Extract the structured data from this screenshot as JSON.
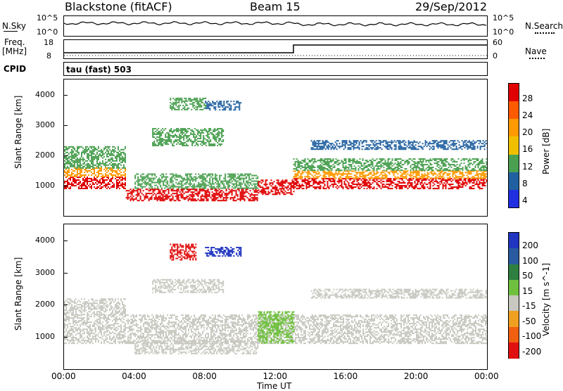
{
  "header": {
    "station": "Blackstone (fitACF)",
    "beam": "Beam 15",
    "date": "29/Sep/2012"
  },
  "top_panel": {
    "left_label": "N.Sky",
    "left_tick_top": "10^5",
    "left_tick_bottom": "10^0",
    "right_tick_top": "10^5",
    "right_tick_bottom": "10^0",
    "right_label": "N.Search"
  },
  "freq_panel": {
    "left_label_1": "Freq.",
    "left_label_2": "[MHz]",
    "left_tick_top": "18",
    "left_tick_bottom": "8",
    "right_tick_top": "60",
    "right_tick_bottom": "0",
    "right_label": "Nave"
  },
  "cpid": {
    "label": "CPID",
    "value": "tau (fast) 503"
  },
  "power_colorbar": {
    "title": "Power [dB]",
    "ticks": [
      "28",
      "24",
      "20",
      "16",
      "12",
      "8",
      "4"
    ],
    "colors": [
      "#e00000",
      "#ff5a00",
      "#ff9a00",
      "#f0c000",
      "#4aa050",
      "#2060a0",
      "#2030e0"
    ]
  },
  "velocity_colorbar": {
    "title": "Velocity [m s^-1]",
    "ticks": [
      "200",
      "100",
      "50",
      "15",
      "-15",
      "-50",
      "-100",
      "-200"
    ],
    "colors": [
      "#2035c0",
      "#2a5aa0",
      "#2e8040",
      "#70c040",
      "#c8c8c0",
      "#f0a020",
      "#f06010",
      "#e01010"
    ]
  },
  "chart_data": [
    {
      "type": "heatmap",
      "title": "Power",
      "ylabel": "Slant Range [km]",
      "xlabel": "Time UT",
      "yticks": [
        "1000",
        "2000",
        "3000",
        "4000"
      ],
      "xticks": [
        "00:00",
        "04:00",
        "08:00",
        "12:00",
        "16:00",
        "20:00",
        "00:00"
      ],
      "xlim": [
        0,
        24
      ],
      "ylim": [
        0,
        4500
      ],
      "bands": [
        {
          "t0": 0,
          "t1": 3.5,
          "r0": 900,
          "r1": 1300,
          "color": "#e00000"
        },
        {
          "t0": 0,
          "t1": 3.5,
          "r0": 1300,
          "r1": 1600,
          "color": "#ff9a00"
        },
        {
          "t0": 0,
          "t1": 3.5,
          "r0": 1600,
          "r1": 2300,
          "color": "#4aa050"
        },
        {
          "t0": 13,
          "t1": 24,
          "r0": 900,
          "r1": 1250,
          "color": "#e00000"
        },
        {
          "t0": 13,
          "t1": 24,
          "r0": 1250,
          "r1": 1500,
          "color": "#ff9a00"
        },
        {
          "t0": 13,
          "t1": 24,
          "r0": 1500,
          "r1": 1900,
          "color": "#4aa050"
        },
        {
          "t0": 3.5,
          "t1": 11,
          "r0": 500,
          "r1": 900,
          "color": "#e00000"
        },
        {
          "t0": 4,
          "t1": 11,
          "r0": 900,
          "r1": 1400,
          "color": "#4aa050"
        },
        {
          "t0": 11,
          "t1": 13,
          "r0": 700,
          "r1": 1200,
          "color": "#e00000"
        },
        {
          "t0": 5,
          "t1": 9,
          "r0": 2300,
          "r1": 2900,
          "color": "#4aa050"
        },
        {
          "t0": 6,
          "t1": 8,
          "r0": 3500,
          "r1": 3900,
          "color": "#4aa050"
        },
        {
          "t0": 8,
          "t1": 10,
          "r0": 3500,
          "r1": 3800,
          "color": "#2060a0"
        },
        {
          "t0": 14,
          "t1": 24,
          "r0": 2200,
          "r1": 2500,
          "color": "#2060a0"
        }
      ]
    },
    {
      "type": "heatmap",
      "title": "Velocity",
      "ylabel": "Slant Range [km]",
      "xlabel": "Time UT",
      "yticks": [
        "1000",
        "2000",
        "3000",
        "4000"
      ],
      "xticks": [
        "00:00",
        "04:00",
        "08:00",
        "12:00",
        "16:00",
        "20:00",
        "00:00"
      ],
      "xlim": [
        0,
        24
      ],
      "ylim": [
        0,
        4500
      ],
      "bands": [
        {
          "t0": 0,
          "t1": 24,
          "r0": 800,
          "r1": 1700,
          "color": "#c8c8c0"
        },
        {
          "t0": 0,
          "t1": 3.5,
          "r0": 1700,
          "r1": 2200,
          "color": "#c8c8c0"
        },
        {
          "t0": 11,
          "t1": 13,
          "r0": 800,
          "r1": 1800,
          "color": "#70c040"
        },
        {
          "t0": 4,
          "t1": 11,
          "r0": 500,
          "r1": 900,
          "color": "#c8c8c0"
        },
        {
          "t0": 6,
          "t1": 7.5,
          "r0": 3400,
          "r1": 3900,
          "color": "#e01010"
        },
        {
          "t0": 8,
          "t1": 10,
          "r0": 3500,
          "r1": 3800,
          "color": "#2035c0"
        },
        {
          "t0": 14,
          "t1": 24,
          "r0": 2200,
          "r1": 2500,
          "color": "#c8c8c0"
        },
        {
          "t0": 5,
          "t1": 9,
          "r0": 2400,
          "r1": 2800,
          "color": "#c8c8c0"
        }
      ]
    }
  ]
}
